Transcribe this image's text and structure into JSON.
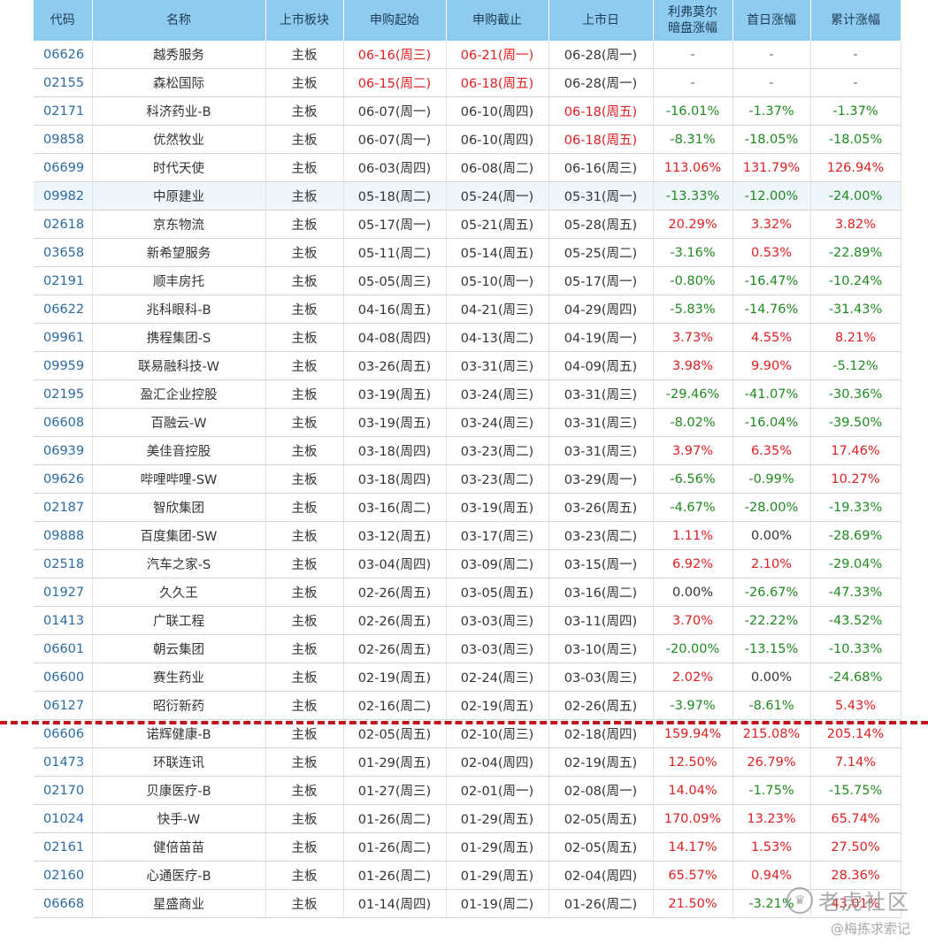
{
  "headers": [
    "代码",
    "名称",
    "上市板块",
    "申购起始",
    "申购截止",
    "上市日",
    "利弗莫尔\n暗盘涨幅",
    "首日涨幅",
    "累计涨幅"
  ],
  "rows": [
    {
      "code": "06626",
      "name": "越秀服务",
      "board": "主板",
      "sub_start": "06-16(周三)",
      "sub_end": "06-21(周一)",
      "list_date": "06-28(周一)",
      "dark": "-",
      "first": "-",
      "cum": "-",
      "start_red": true,
      "end_red": true
    },
    {
      "code": "02155",
      "name": "森松国际",
      "board": "主板",
      "sub_start": "06-15(周二)",
      "sub_end": "06-18(周五)",
      "list_date": "06-28(周一)",
      "dark": "-",
      "first": "-",
      "cum": "-",
      "start_red": true,
      "end_red": true
    },
    {
      "code": "02171",
      "name": "科济药业-B",
      "board": "主板",
      "sub_start": "06-07(周一)",
      "sub_end": "06-10(周四)",
      "list_date": "06-18(周五)",
      "dark": "-16.01%",
      "first": "-1.37%",
      "cum": "-1.37%",
      "list_red": true
    },
    {
      "code": "09858",
      "name": "优然牧业",
      "board": "主板",
      "sub_start": "06-07(周一)",
      "sub_end": "06-10(周四)",
      "list_date": "06-18(周五)",
      "dark": "-8.31%",
      "first": "-18.05%",
      "cum": "-18.05%",
      "list_red": true
    },
    {
      "code": "06699",
      "name": "时代天使",
      "board": "主板",
      "sub_start": "06-03(周四)",
      "sub_end": "06-08(周二)",
      "list_date": "06-16(周三)",
      "dark": "113.06%",
      "first": "131.79%",
      "cum": "126.94%"
    },
    {
      "code": "09982",
      "name": "中原建业",
      "board": "主板",
      "sub_start": "05-18(周二)",
      "sub_end": "05-24(周一)",
      "list_date": "05-31(周一)",
      "dark": "-13.33%",
      "first": "-12.00%",
      "cum": "-24.00%",
      "highlight": true
    },
    {
      "code": "02618",
      "name": "京东物流",
      "board": "主板",
      "sub_start": "05-17(周一)",
      "sub_end": "05-21(周五)",
      "list_date": "05-28(周五)",
      "dark": "20.29%",
      "first": "3.32%",
      "cum": "3.82%"
    },
    {
      "code": "03658",
      "name": "新希望服务",
      "board": "主板",
      "sub_start": "05-11(周二)",
      "sub_end": "05-14(周五)",
      "list_date": "05-25(周二)",
      "dark": "-3.16%",
      "first": "0.53%",
      "cum": "-22.89%"
    },
    {
      "code": "02191",
      "name": "顺丰房托",
      "board": "主板",
      "sub_start": "05-05(周三)",
      "sub_end": "05-10(周一)",
      "list_date": "05-17(周一)",
      "dark": "-0.80%",
      "first": "-16.47%",
      "cum": "-10.24%"
    },
    {
      "code": "06622",
      "name": "兆科眼科-B",
      "board": "主板",
      "sub_start": "04-16(周五)",
      "sub_end": "04-21(周三)",
      "list_date": "04-29(周四)",
      "dark": "-5.83%",
      "first": "-14.76%",
      "cum": "-31.43%"
    },
    {
      "code": "09961",
      "name": "携程集团-S",
      "board": "主板",
      "sub_start": "04-08(周四)",
      "sub_end": "04-13(周二)",
      "list_date": "04-19(周一)",
      "dark": "3.73%",
      "first": "4.55%",
      "cum": "8.21%"
    },
    {
      "code": "09959",
      "name": "联易融科技-W",
      "board": "主板",
      "sub_start": "03-26(周五)",
      "sub_end": "03-31(周三)",
      "list_date": "04-09(周五)",
      "dark": "3.98%",
      "first": "9.90%",
      "cum": "-5.12%"
    },
    {
      "code": "02195",
      "name": "盈汇企业控股",
      "board": "主板",
      "sub_start": "03-19(周五)",
      "sub_end": "03-24(周三)",
      "list_date": "03-31(周三)",
      "dark": "-29.46%",
      "first": "-41.07%",
      "cum": "-30.36%"
    },
    {
      "code": "06608",
      "name": "百融云-W",
      "board": "主板",
      "sub_start": "03-19(周五)",
      "sub_end": "03-24(周三)",
      "list_date": "03-31(周三)",
      "dark": "-8.02%",
      "first": "-16.04%",
      "cum": "-39.50%"
    },
    {
      "code": "06939",
      "name": "美佳音控股",
      "board": "主板",
      "sub_start": "03-18(周四)",
      "sub_end": "03-23(周二)",
      "list_date": "03-31(周三)",
      "dark": "3.97%",
      "first": "6.35%",
      "cum": "17.46%"
    },
    {
      "code": "09626",
      "name": "哔哩哔哩-SW",
      "board": "主板",
      "sub_start": "03-18(周四)",
      "sub_end": "03-23(周二)",
      "list_date": "03-29(周一)",
      "dark": "-6.56%",
      "first": "-0.99%",
      "cum": "10.27%"
    },
    {
      "code": "02187",
      "name": "智欣集团",
      "board": "主板",
      "sub_start": "03-16(周二)",
      "sub_end": "03-19(周五)",
      "list_date": "03-26(周五)",
      "dark": "-4.67%",
      "first": "-28.00%",
      "cum": "-19.33%"
    },
    {
      "code": "09888",
      "name": "百度集团-SW",
      "board": "主板",
      "sub_start": "03-12(周五)",
      "sub_end": "03-17(周三)",
      "list_date": "03-23(周二)",
      "dark": "1.11%",
      "first": "0.00%",
      "cum": "-28.69%"
    },
    {
      "code": "02518",
      "name": "汽车之家-S",
      "board": "主板",
      "sub_start": "03-04(周四)",
      "sub_end": "03-09(周二)",
      "list_date": "03-15(周一)",
      "dark": "6.92%",
      "first": "2.10%",
      "cum": "-29.04%"
    },
    {
      "code": "01927",
      "name": "久久王",
      "board": "主板",
      "sub_start": "02-26(周五)",
      "sub_end": "03-05(周五)",
      "list_date": "03-16(周二)",
      "dark": "0.00%",
      "first": "-26.67%",
      "cum": "-47.33%"
    },
    {
      "code": "01413",
      "name": "广联工程",
      "board": "主板",
      "sub_start": "02-26(周五)",
      "sub_end": "03-03(周三)",
      "list_date": "03-11(周四)",
      "dark": "3.70%",
      "first": "-22.22%",
      "cum": "-43.52%"
    },
    {
      "code": "06601",
      "name": "朝云集团",
      "board": "主板",
      "sub_start": "02-26(周五)",
      "sub_end": "03-03(周三)",
      "list_date": "03-10(周三)",
      "dark": "-20.00%",
      "first": "-13.15%",
      "cum": "-10.33%"
    },
    {
      "code": "06600",
      "name": "赛生药业",
      "board": "主板",
      "sub_start": "02-19(周五)",
      "sub_end": "02-24(周三)",
      "list_date": "03-03(周三)",
      "dark": "2.02%",
      "first": "0.00%",
      "cum": "-24.68%"
    },
    {
      "code": "06127",
      "name": "昭衍新药",
      "board": "主板",
      "sub_start": "02-16(周二)",
      "sub_end": "02-19(周五)",
      "list_date": "02-26(周五)",
      "dark": "-3.97%",
      "first": "-8.61%",
      "cum": "5.43%"
    },
    {
      "code": "06606",
      "name": "诺辉健康-B",
      "board": "主板",
      "sub_start": "02-05(周五)",
      "sub_end": "02-10(周三)",
      "list_date": "02-18(周四)",
      "dark": "159.94%",
      "first": "215.08%",
      "cum": "205.14%"
    },
    {
      "code": "01473",
      "name": "环联连讯",
      "board": "主板",
      "sub_start": "01-29(周五)",
      "sub_end": "02-04(周四)",
      "list_date": "02-19(周五)",
      "dark": "12.50%",
      "first": "26.79%",
      "cum": "7.14%"
    },
    {
      "code": "02170",
      "name": "贝康医疗-B",
      "board": "主板",
      "sub_start": "01-27(周三)",
      "sub_end": "02-01(周一)",
      "list_date": "02-08(周一)",
      "dark": "14.04%",
      "first": "-1.75%",
      "cum": "-15.75%"
    },
    {
      "code": "01024",
      "name": "快手-W",
      "board": "主板",
      "sub_start": "01-26(周二)",
      "sub_end": "01-29(周五)",
      "list_date": "02-05(周五)",
      "dark": "170.09%",
      "first": "13.23%",
      "cum": "65.74%"
    },
    {
      "code": "02161",
      "name": "健倍苗苗",
      "board": "主板",
      "sub_start": "01-26(周二)",
      "sub_end": "01-29(周五)",
      "list_date": "02-05(周五)",
      "dark": "14.17%",
      "first": "1.53%",
      "cum": "27.50%"
    },
    {
      "code": "02160",
      "name": "心通医疗-B",
      "board": "主板",
      "sub_start": "01-26(周二)",
      "sub_end": "01-29(周五)",
      "list_date": "02-04(周四)",
      "dark": "65.57%",
      "first": "0.94%",
      "cum": "28.36%"
    },
    {
      "code": "06668",
      "name": "星盛商业",
      "board": "主板",
      "sub_start": "01-14(周四)",
      "sub_end": "01-19(周二)",
      "list_date": "01-26(周二)",
      "dark": "21.50%",
      "first": "-3.21%",
      "cum": "43.01%"
    }
  ],
  "colors": {
    "up": "#e02020",
    "down": "#1e8a1e",
    "header_bg": "#8ecbee",
    "divider": "#c0151a"
  },
  "watermark": {
    "brand": "老虎社区",
    "author": "@梅拣求索记",
    "icon": "tiger-logo-icon"
  }
}
